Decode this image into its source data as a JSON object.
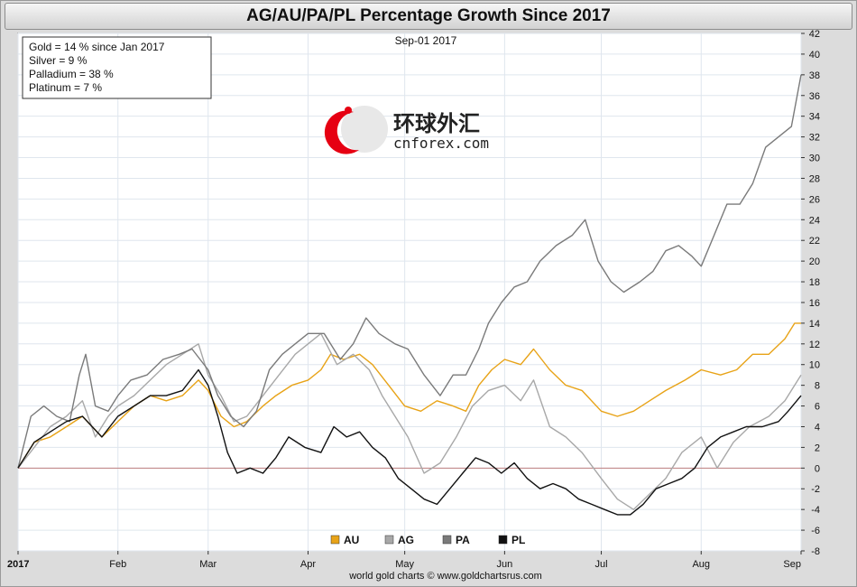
{
  "chart_data": {
    "type": "line",
    "title": "AG/AU/PA/PL Percentage Growth Since 2017",
    "date_label": "Sep-01  2017",
    "source": "world gold charts © www.goldchartsrus.com",
    "y_axis": {
      "position": "right",
      "min": -8,
      "max": 42,
      "tick_step": 2
    },
    "y_ticks": [
      "42",
      "40",
      "38",
      "36",
      "34",
      "32",
      "30",
      "28",
      "26",
      "24",
      "22",
      "20",
      "18",
      "16",
      "14",
      "12",
      "10",
      "8",
      "6",
      "4",
      "2",
      "0",
      "-2",
      "-4",
      "-6",
      "-8"
    ],
    "x_ticks": [
      {
        "label": "2017",
        "day": 0,
        "bold": true
      },
      {
        "label": "Feb",
        "day": 31
      },
      {
        "label": "Mar",
        "day": 59
      },
      {
        "label": "Apr",
        "day": 90
      },
      {
        "label": "May",
        "day": 120
      },
      {
        "label": "Jun",
        "day": 151
      },
      {
        "label": "Jul",
        "day": 181
      },
      {
        "label": "Aug",
        "day": 212
      },
      {
        "label": "Sep",
        "day": 243
      }
    ],
    "x_range_days": [
      0,
      243
    ],
    "grid": true,
    "zero_line": true,
    "stats_box": [
      "Gold = 14 % since Jan 2017",
      "Silver = 9 %",
      "Palladium = 38 %",
      "Platinum = 7 %"
    ],
    "legend_placement": "bottom-center",
    "series": [
      {
        "name": "AU",
        "color": "#e8a317",
        "points": [
          [
            0,
            0
          ],
          [
            5,
            2.5
          ],
          [
            10,
            3
          ],
          [
            15,
            4
          ],
          [
            20,
            5
          ],
          [
            26,
            3
          ],
          [
            31,
            4.5
          ],
          [
            36,
            6
          ],
          [
            41,
            7
          ],
          [
            46,
            6.5
          ],
          [
            51,
            7
          ],
          [
            56,
            8.5
          ],
          [
            59,
            7.5
          ],
          [
            63,
            5
          ],
          [
            67,
            4
          ],
          [
            71,
            4.5
          ],
          [
            76,
            6
          ],
          [
            80,
            7
          ],
          [
            85,
            8
          ],
          [
            90,
            8.5
          ],
          [
            94,
            9.5
          ],
          [
            97,
            11
          ],
          [
            101,
            10.5
          ],
          [
            106,
            11
          ],
          [
            110,
            10
          ],
          [
            115,
            8
          ],
          [
            120,
            6
          ],
          [
            125,
            5.5
          ],
          [
            130,
            6.5
          ],
          [
            135,
            6
          ],
          [
            139,
            5.5
          ],
          [
            143,
            8
          ],
          [
            147,
            9.5
          ],
          [
            151,
            10.5
          ],
          [
            156,
            10
          ],
          [
            160,
            11.5
          ],
          [
            165,
            9.5
          ],
          [
            170,
            8
          ],
          [
            175,
            7.5
          ],
          [
            181,
            5.5
          ],
          [
            186,
            5
          ],
          [
            191,
            5.5
          ],
          [
            196,
            6.5
          ],
          [
            201,
            7.5
          ],
          [
            207,
            8.5
          ],
          [
            212,
            9.5
          ],
          [
            218,
            9
          ],
          [
            223,
            9.5
          ],
          [
            228,
            11
          ],
          [
            233,
            11
          ],
          [
            238,
            12.5
          ],
          [
            241,
            14
          ],
          [
            243,
            14
          ]
        ]
      },
      {
        "name": "AG",
        "color": "#a8a8a8",
        "points": [
          [
            0,
            0
          ],
          [
            5,
            2
          ],
          [
            10,
            4
          ],
          [
            15,
            5
          ],
          [
            20,
            6.5
          ],
          [
            24,
            3
          ],
          [
            28,
            5
          ],
          [
            31,
            6
          ],
          [
            36,
            7
          ],
          [
            41,
            8.5
          ],
          [
            46,
            10
          ],
          [
            51,
            11
          ],
          [
            56,
            12
          ],
          [
            59,
            9
          ],
          [
            63,
            7
          ],
          [
            67,
            4.5
          ],
          [
            71,
            5
          ],
          [
            76,
            7
          ],
          [
            81,
            9
          ],
          [
            86,
            11
          ],
          [
            90,
            12
          ],
          [
            94,
            13
          ],
          [
            99,
            10
          ],
          [
            104,
            11
          ],
          [
            109,
            9.5
          ],
          [
            113,
            7
          ],
          [
            117,
            5
          ],
          [
            121,
            3
          ],
          [
            126,
            -0.5
          ],
          [
            131,
            0.5
          ],
          [
            136,
            3
          ],
          [
            141,
            6
          ],
          [
            146,
            7.5
          ],
          [
            151,
            8
          ],
          [
            156,
            6.5
          ],
          [
            160,
            8.5
          ],
          [
            165,
            4
          ],
          [
            170,
            3
          ],
          [
            175,
            1.5
          ],
          [
            181,
            -1
          ],
          [
            186,
            -3
          ],
          [
            191,
            -4
          ],
          [
            196,
            -2.5
          ],
          [
            201,
            -1
          ],
          [
            206,
            1.5
          ],
          [
            212,
            3
          ],
          [
            217,
            0
          ],
          [
            222,
            2.5
          ],
          [
            227,
            4
          ],
          [
            233,
            5
          ],
          [
            238,
            6.5
          ],
          [
            243,
            9
          ]
        ]
      },
      {
        "name": "PA",
        "color": "#7a7a7a",
        "points": [
          [
            0,
            0
          ],
          [
            4,
            5
          ],
          [
            8,
            6
          ],
          [
            12,
            5
          ],
          [
            16,
            4.5
          ],
          [
            19,
            9
          ],
          [
            21,
            11
          ],
          [
            24,
            6
          ],
          [
            28,
            5.5
          ],
          [
            31,
            7
          ],
          [
            35,
            8.5
          ],
          [
            40,
            9
          ],
          [
            45,
            10.5
          ],
          [
            50,
            11
          ],
          [
            54,
            11.5
          ],
          [
            59,
            9.5
          ],
          [
            62,
            7
          ],
          [
            66,
            5
          ],
          [
            70,
            4
          ],
          [
            74,
            5.5
          ],
          [
            78,
            9.5
          ],
          [
            82,
            11
          ],
          [
            86,
            12
          ],
          [
            90,
            13
          ],
          [
            95,
            13
          ],
          [
            100,
            10.5
          ],
          [
            104,
            12
          ],
          [
            108,
            14.5
          ],
          [
            112,
            13
          ],
          [
            117,
            12
          ],
          [
            121,
            11.5
          ],
          [
            126,
            9
          ],
          [
            131,
            7
          ],
          [
            135,
            9
          ],
          [
            139,
            9
          ],
          [
            143,
            11.5
          ],
          [
            146,
            14
          ],
          [
            150,
            16
          ],
          [
            154,
            17.5
          ],
          [
            158,
            18
          ],
          [
            162,
            20
          ],
          [
            167,
            21.5
          ],
          [
            172,
            22.5
          ],
          [
            176,
            24
          ],
          [
            180,
            20
          ],
          [
            184,
            18
          ],
          [
            188,
            17
          ],
          [
            193,
            18
          ],
          [
            197,
            19
          ],
          [
            201,
            21
          ],
          [
            205,
            21.5
          ],
          [
            209,
            20.5
          ],
          [
            212,
            19.5
          ],
          [
            216,
            22.5
          ],
          [
            220,
            25.5
          ],
          [
            224,
            25.5
          ],
          [
            228,
            27.5
          ],
          [
            232,
            31
          ],
          [
            236,
            32
          ],
          [
            240,
            33
          ],
          [
            243,
            38
          ]
        ]
      },
      {
        "name": "PL",
        "color": "#111111",
        "points": [
          [
            0,
            0
          ],
          [
            5,
            2.5
          ],
          [
            10,
            3.5
          ],
          [
            15,
            4.5
          ],
          [
            20,
            5
          ],
          [
            26,
            3
          ],
          [
            31,
            5
          ],
          [
            36,
            6
          ],
          [
            41,
            7
          ],
          [
            46,
            7
          ],
          [
            51,
            7.5
          ],
          [
            56,
            9.5
          ],
          [
            59,
            8
          ],
          [
            62,
            5
          ],
          [
            65,
            1.5
          ],
          [
            68,
            -0.5
          ],
          [
            72,
            0
          ],
          [
            76,
            -0.5
          ],
          [
            80,
            1
          ],
          [
            84,
            3
          ],
          [
            89,
            2
          ],
          [
            94,
            1.5
          ],
          [
            98,
            4
          ],
          [
            102,
            3
          ],
          [
            106,
            3.5
          ],
          [
            110,
            2
          ],
          [
            114,
            1
          ],
          [
            118,
            -1
          ],
          [
            122,
            -2
          ],
          [
            126,
            -3
          ],
          [
            130,
            -3.5
          ],
          [
            134,
            -2
          ],
          [
            138,
            -0.5
          ],
          [
            142,
            1
          ],
          [
            146,
            0.5
          ],
          [
            150,
            -0.5
          ],
          [
            154,
            0.5
          ],
          [
            158,
            -1
          ],
          [
            162,
            -2
          ],
          [
            166,
            -1.5
          ],
          [
            170,
            -2
          ],
          [
            174,
            -3
          ],
          [
            178,
            -3.5
          ],
          [
            182,
            -4
          ],
          [
            186,
            -4.5
          ],
          [
            190,
            -4.5
          ],
          [
            194,
            -3.5
          ],
          [
            198,
            -2
          ],
          [
            202,
            -1.5
          ],
          [
            206,
            -1
          ],
          [
            210,
            0
          ],
          [
            214,
            2
          ],
          [
            218,
            3
          ],
          [
            222,
            3.5
          ],
          [
            226,
            4
          ],
          [
            231,
            4
          ],
          [
            236,
            4.5
          ],
          [
            239,
            5.5
          ],
          [
            243,
            7
          ]
        ]
      }
    ]
  },
  "watermark": {
    "chinese": "环球外汇",
    "domain": "cnforex.com"
  }
}
